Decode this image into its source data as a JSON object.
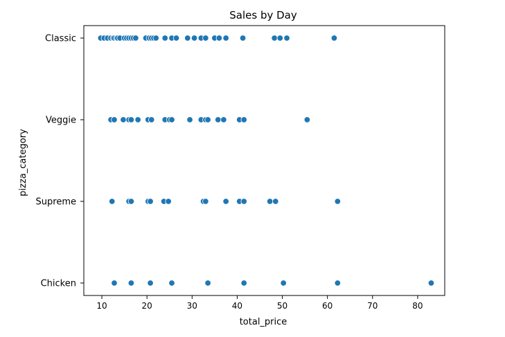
{
  "chart_data": {
    "type": "scatter",
    "title": "Sales by Day",
    "xlabel": "total_price",
    "ylabel": "pizza_category",
    "xlim": [
      6,
      86
    ],
    "x_ticks": [
      10,
      20,
      30,
      40,
      50,
      60,
      70,
      80
    ],
    "categories": [
      "Classic",
      "Veggie",
      "Supreme",
      "Chicken"
    ],
    "grid": false,
    "legend": "none",
    "marker_color": "#1f77b4",
    "marker_edge": "#ffffff",
    "points": [
      {
        "category": "Classic",
        "x": [
          9.75,
          10.5,
          11.25,
          12.0,
          12.5,
          12.75,
          13.25,
          13.5,
          14.0,
          15.0,
          15.5,
          16.0,
          16.5,
          17.0,
          17.5,
          19.75,
          20.5,
          21.0,
          21.5,
          22.0,
          24.0,
          25.5,
          26.5,
          29.0,
          30.5,
          32.0,
          33.0,
          35.0,
          36.0,
          37.5,
          41.25,
          48.25,
          49.5,
          51.0,
          61.5
        ]
      },
      {
        "category": "Veggie",
        "x": [
          12.0,
          12.75,
          14.75,
          16.0,
          16.5,
          18.0,
          20.25,
          21.0,
          24.0,
          25.0,
          25.5,
          29.5,
          32.0,
          33.0,
          33.5,
          35.75,
          37.0,
          40.5,
          41.5,
          55.5
        ]
      },
      {
        "category": "Supreme",
        "x": [
          12.25,
          16.0,
          16.5,
          20.25,
          20.75,
          23.75,
          24.75,
          32.5,
          33.0,
          37.5,
          40.5,
          41.5,
          47.25,
          48.5,
          62.25
        ]
      },
      {
        "category": "Chicken",
        "x": [
          12.75,
          16.5,
          20.75,
          25.5,
          33.5,
          41.5,
          50.25,
          62.25,
          83.0
        ]
      }
    ]
  }
}
